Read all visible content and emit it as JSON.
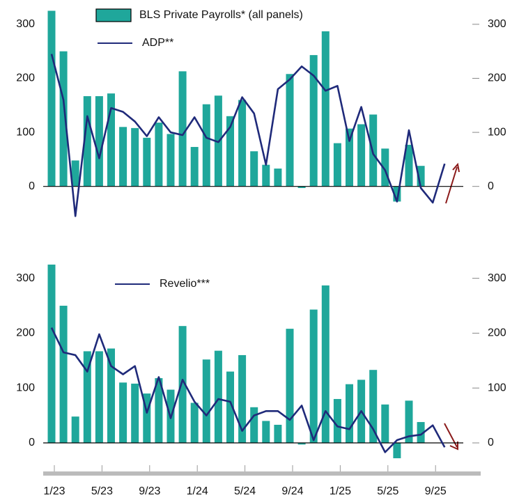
{
  "chart_data": [
    {
      "type": "combo",
      "categories": [
        "1/23",
        null,
        null,
        null,
        "5/23",
        null,
        null,
        null,
        "9/23",
        null,
        null,
        null,
        "1/24",
        null,
        null,
        null,
        "5/24",
        null,
        null,
        null,
        "9/24",
        null,
        null,
        null,
        "1/25",
        null,
        null,
        null,
        "5/25",
        null,
        null,
        null,
        "9/25",
        null
      ],
      "series": [
        {
          "name": "BLS Private Payrolls* (all panels)",
          "type": "bar",
          "color": "#1fa79b",
          "values": [
            325,
            250,
            48,
            167,
            167,
            172,
            110,
            108,
            90,
            118,
            97,
            213,
            73,
            152,
            168,
            130,
            160,
            65,
            40,
            33,
            208,
            -3,
            243,
            287,
            80,
            107,
            115,
            133,
            70,
            -28,
            77,
            38,
            null,
            null
          ]
        },
        {
          "name": "ADP**",
          "type": "line",
          "color": "#1f2a7a",
          "values": [
            245,
            160,
            -55,
            130,
            52,
            145,
            138,
            120,
            93,
            128,
            100,
            95,
            128,
            90,
            82,
            110,
            165,
            135,
            40,
            180,
            198,
            222,
            205,
            177,
            186,
            84,
            147,
            60,
            30,
            -28,
            104,
            -3,
            -30,
            42
          ]
        }
      ],
      "ylim": [
        -70,
        330
      ],
      "yticks": [
        0,
        100,
        200,
        300
      ],
      "y2lim": [
        -70,
        330
      ],
      "y2ticks": [
        0,
        100,
        200,
        300
      ]
    },
    {
      "type": "combo",
      "series": [
        {
          "type": "bar",
          "color": "#1fa79b",
          "values": [
            325,
            250,
            48,
            167,
            167,
            172,
            110,
            108,
            90,
            118,
            97,
            213,
            73,
            152,
            168,
            130,
            160,
            65,
            40,
            33,
            208,
            -3,
            243,
            287,
            80,
            107,
            115,
            133,
            70,
            -28,
            77,
            38,
            null,
            null
          ]
        },
        {
          "name": "Revelio***",
          "type": "line",
          "color": "#1f2a7a",
          "values": [
            210,
            165,
            160,
            130,
            198,
            140,
            125,
            140,
            55,
            120,
            45,
            115,
            75,
            50,
            80,
            75,
            22,
            50,
            58,
            58,
            42,
            68,
            5,
            58,
            30,
            25,
            58,
            25,
            -17,
            5,
            12,
            15,
            32,
            -8
          ]
        }
      ],
      "ylim": [
        -40,
        330
      ],
      "yticks": [
        0,
        100,
        200,
        300
      ],
      "y2lim": [
        -40,
        330
      ],
      "y2ticks": [
        0,
        100,
        200,
        300
      ]
    }
  ]
}
